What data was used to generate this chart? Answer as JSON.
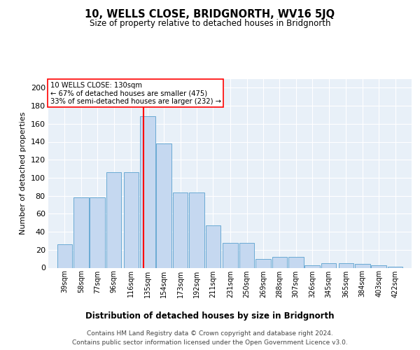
{
  "title": "10, WELLS CLOSE, BRIDGNORTH, WV16 5JQ",
  "subtitle": "Size of property relative to detached houses in Bridgnorth",
  "xlabel": "Distribution of detached houses by size in Bridgnorth",
  "ylabel": "Number of detached properties",
  "footer_line1": "Contains HM Land Registry data © Crown copyright and database right 2024.",
  "footer_line2": "Contains public sector information licensed under the Open Government Licence v3.0.",
  "bar_labels": [
    "39sqm",
    "58sqm",
    "77sqm",
    "96sqm",
    "116sqm",
    "135sqm",
    "154sqm",
    "173sqm",
    "192sqm",
    "211sqm",
    "231sqm",
    "250sqm",
    "269sqm",
    "288sqm",
    "307sqm",
    "326sqm",
    "345sqm",
    "365sqm",
    "384sqm",
    "403sqm",
    "422sqm"
  ],
  "bar_centers": [
    39,
    58,
    77,
    96,
    116,
    135,
    154,
    173,
    192,
    211,
    231,
    250,
    269,
    288,
    307,
    326,
    345,
    365,
    384,
    403,
    422
  ],
  "bar_heights": [
    26,
    78,
    78,
    106,
    106,
    168,
    138,
    84,
    84,
    47,
    28,
    28,
    10,
    12,
    12,
    3,
    5,
    5,
    4,
    3,
    1
  ],
  "ylim": [
    0,
    210
  ],
  "yticks": [
    0,
    20,
    40,
    60,
    80,
    100,
    120,
    140,
    160,
    180,
    200
  ],
  "bar_color": "#c5d8f0",
  "bar_edge_color": "#6aaad4",
  "bg_color": "#e8f0f8",
  "annotation_line1": "10 WELLS CLOSE: 130sqm",
  "annotation_line2": "← 67% of detached houses are smaller (475)",
  "annotation_line3": "33% of semi-detached houses are larger (232) →",
  "vline_x": 130,
  "vline_color": "red",
  "bin_width": 17.5,
  "title_fontsize": 10.5,
  "subtitle_fontsize": 8.5,
  "ylabel_fontsize": 8,
  "xlabel_fontsize": 8.5
}
